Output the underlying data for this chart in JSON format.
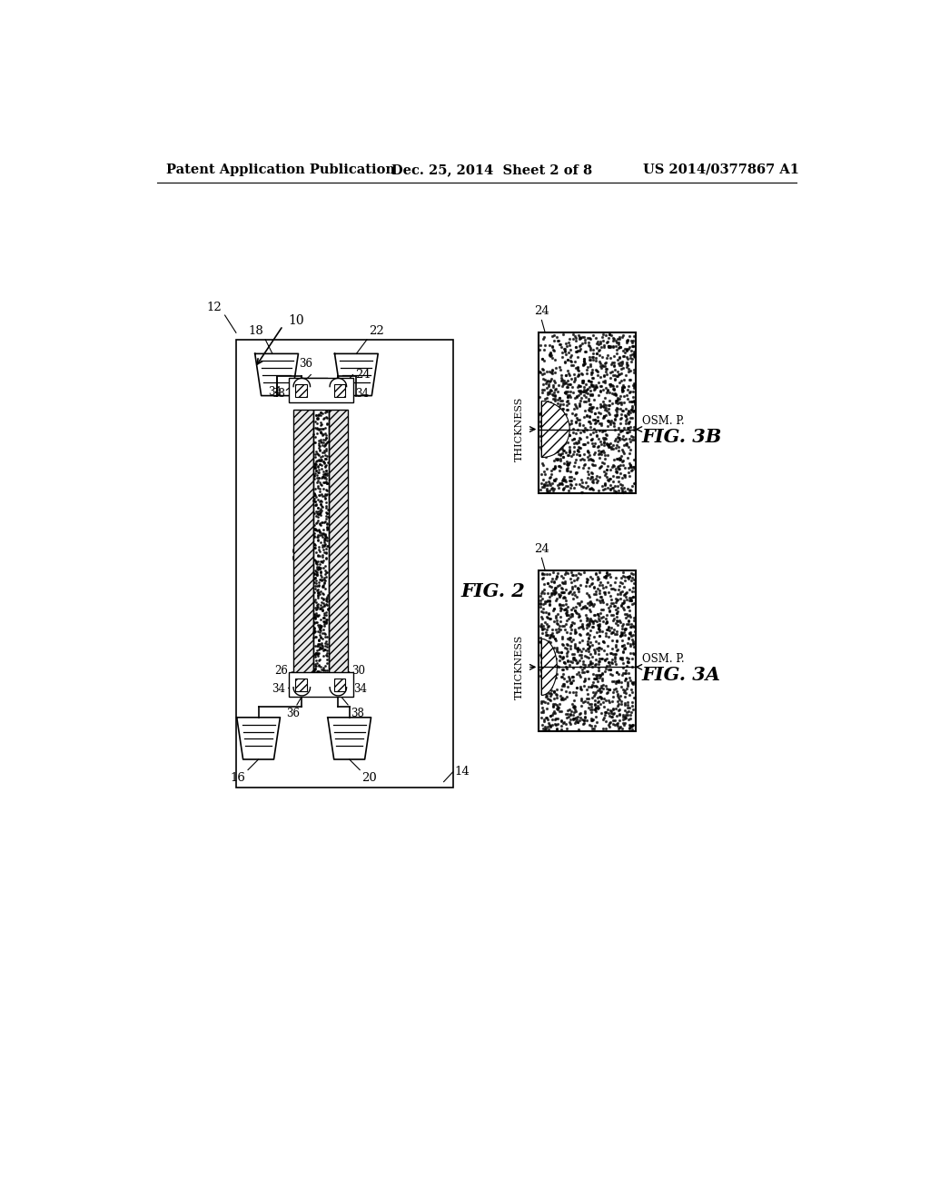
{
  "header_left": "Patent Application Publication",
  "header_center": "Dec. 25, 2014  Sheet 2 of 8",
  "header_right": "US 2014/0377867 A1",
  "fig2_label": "FIG. 2",
  "fig3a_label": "FIG. 3A",
  "fig3b_label": "FIG. 3B",
  "bg_color": "#ffffff",
  "line_color": "#000000",
  "thickness_label": "THICKNESS",
  "osm_p_label": "OSM. P."
}
